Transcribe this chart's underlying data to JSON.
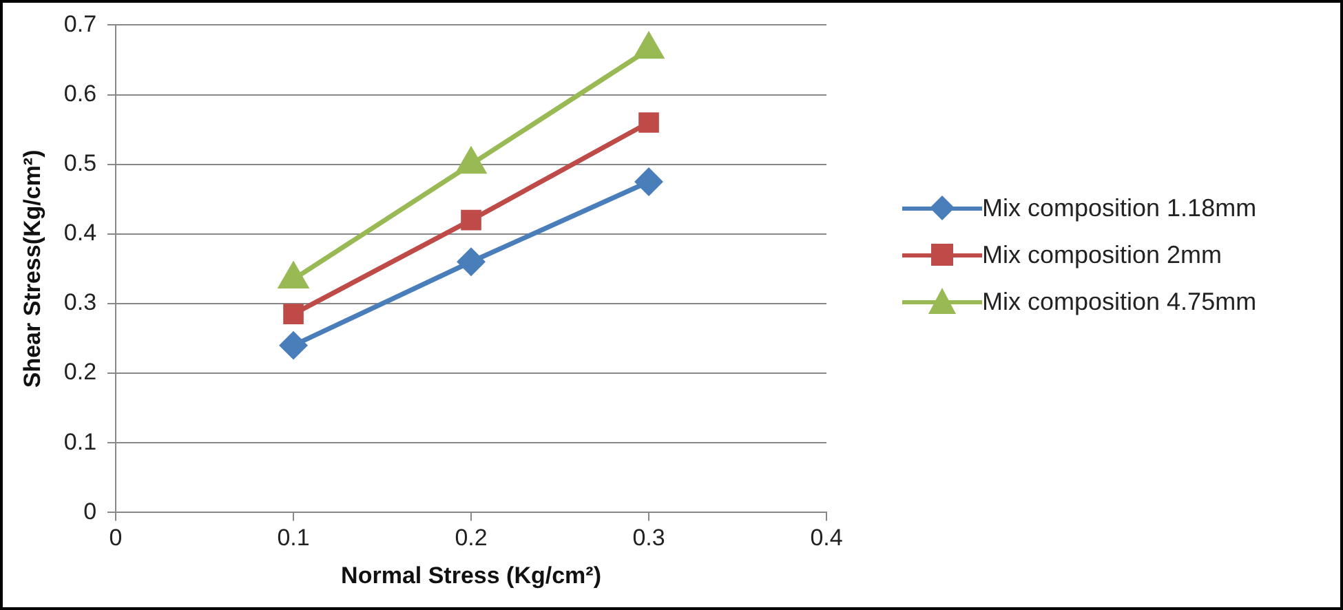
{
  "chart_data": {
    "type": "line",
    "xlabel": "Normal Stress (Kg/cm²)",
    "ylabel": "Shear Stress(Kg/cm²)",
    "x": [
      0.1,
      0.2,
      0.3
    ],
    "series": [
      {
        "name": "Mix composition 1.18mm",
        "color": "#4a7ebb",
        "marker": "diamond",
        "values": [
          0.24,
          0.36,
          0.475
        ]
      },
      {
        "name": "Mix composition 2mm",
        "color": "#be4b48",
        "marker": "square",
        "values": [
          0.285,
          0.42,
          0.56
        ]
      },
      {
        "name": "Mix composition 4.75mm",
        "color": "#98b954",
        "marker": "triangle",
        "values": [
          0.335,
          0.5,
          0.665
        ]
      }
    ],
    "xlim": [
      0,
      0.4
    ],
    "xticks": [
      0,
      0.1,
      0.2,
      0.3,
      0.4
    ],
    "ylim": [
      0,
      0.7
    ],
    "yticks": [
      0,
      0.1,
      0.2,
      0.3,
      0.4,
      0.5,
      0.6,
      0.7
    ],
    "grid": "y",
    "legend": "right",
    "line_style": "solid"
  }
}
